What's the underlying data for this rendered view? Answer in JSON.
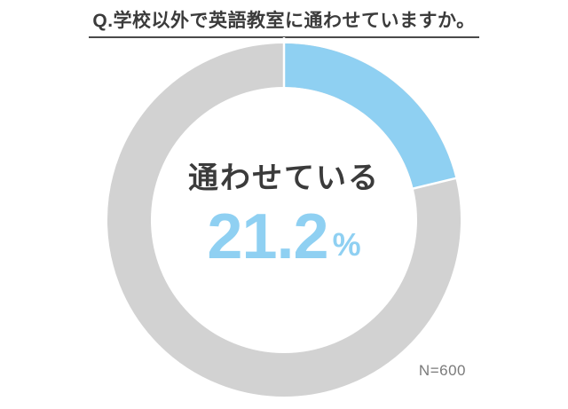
{
  "title": {
    "text": "Q.学校以外で英語教室に通わせていますか。"
  },
  "center_text": {
    "label": "通わせている",
    "value": "21.2",
    "unit": "%"
  },
  "footnote": {
    "text": "N=600"
  },
  "colors": {
    "highlight_blue": "#8fd0f2",
    "remainder_gray": "#d2d2d2",
    "text_dark": "#3b3b3b",
    "footnote_gray": "#7a7a7a",
    "underline": "#4a4a4a",
    "background": "#ffffff"
  },
  "chart_data": {
    "type": "pie",
    "style": "donut",
    "title": "Q.学校以外で英語教室に通わせていますか。",
    "start_angle_deg": 0,
    "direction": "clockwise",
    "segments": [
      {
        "label": "通わせている",
        "value": 21.2,
        "color": "#8fd0f2"
      },
      {
        "label": "",
        "value": 78.8,
        "color": "#d2d2d2"
      }
    ],
    "center_label": "通わせている",
    "center_value_text": "21.2%",
    "sample_size": "N=600",
    "legend": "none"
  }
}
